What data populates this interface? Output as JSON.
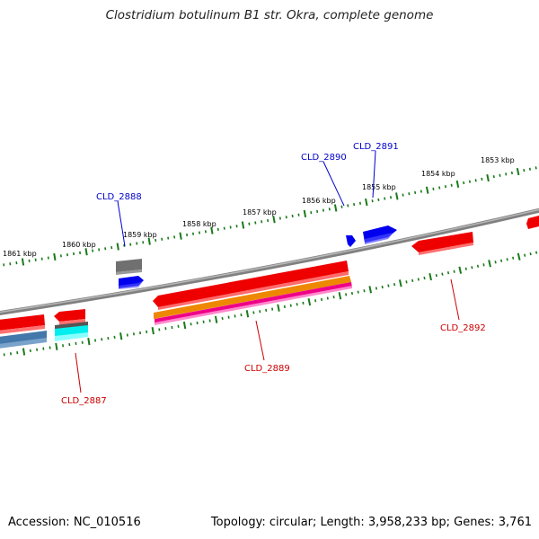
{
  "title": "Clostridium botulinum B1 str. Okra, complete genome",
  "footer": {
    "accession": "Accession: NC_010516",
    "summary": "Topology: circular; Length: 3,958,233 bp; Genes: 3,761"
  },
  "ruler_labels": [
    "1861 kbp",
    "1860 kbp",
    "1859 kbp",
    "1858 kbp",
    "1857 kbp",
    "1856 kbp",
    "1855 kbp",
    "1854 kbp",
    "1853 kbp"
  ],
  "genes": {
    "forward_labels": [
      "CLD_2888",
      "CLD_2890",
      "CLD_2891"
    ],
    "reverse_labels": [
      "CLD_2887",
      "CLD_2889",
      "CLD_2892"
    ]
  },
  "colors": {
    "backbone": "#808080",
    "forward_label": "#0000cc",
    "reverse_label": "#cc0000",
    "ruler_tick": "#1a7a1a",
    "cds_red": "#ee0000",
    "cds_blue": "#0000ee",
    "cds_gray": "#707070",
    "cds_orange": "#ee8800",
    "cds_magenta": "#ee0088",
    "cds_cyan": "#00eeee",
    "cds_steel": "#4477aa"
  }
}
